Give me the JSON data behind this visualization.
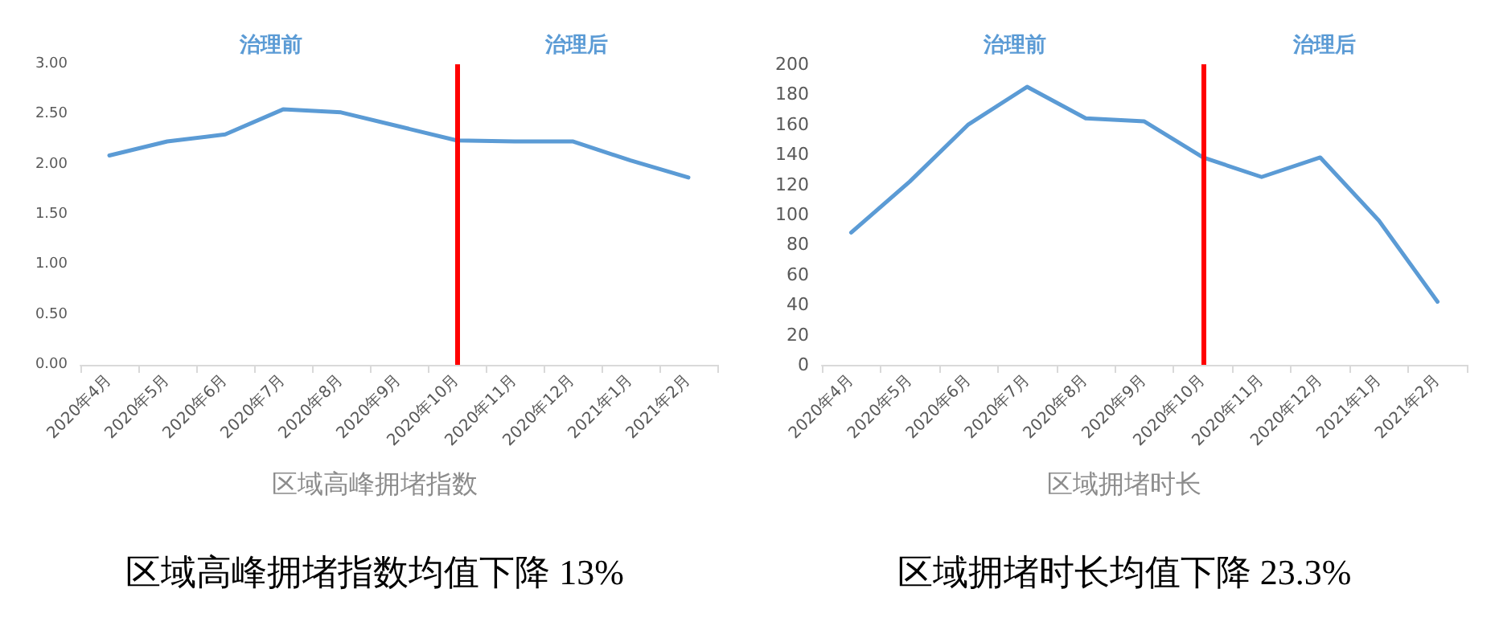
{
  "chart_data": [
    {
      "type": "line",
      "xlabel": "区域高峰拥堵指数",
      "annotations": [
        "治理前",
        "治理后",
        "区域高峰拥堵指数均值下降 13%"
      ],
      "categories": [
        "2020年4月",
        "2020年5月",
        "2020年6月",
        "2020年7月",
        "2020年8月",
        "2020年9月",
        "2020年10月",
        "2020年11月",
        "2020年12月",
        "2021年1月",
        "2021年2月"
      ],
      "series": [
        {
          "color": "#5b9bd5",
          "values": [
            2.09,
            2.23,
            2.3,
            2.55,
            2.52,
            2.38,
            2.24,
            2.23,
            2.23,
            2.04,
            1.87
          ]
        }
      ],
      "ylim": [
        0,
        3
      ],
      "yticks": [
        {
          "value": 0,
          "label": "0.00"
        },
        {
          "value": 0.5,
          "label": "0.50"
        },
        {
          "value": 1,
          "label": "1.00"
        },
        {
          "value": 1.5,
          "label": "1.50"
        },
        {
          "value": 2,
          "label": "2.00"
        },
        {
          "value": 2.5,
          "label": "2.50"
        },
        {
          "value": 3,
          "label": "3.00"
        }
      ],
      "ref_lines": [
        {
          "axis": "x",
          "value": "2020年10月",
          "color": "#ff0000",
          "line_style": "solid"
        }
      ],
      "grid": false,
      "marker": "none",
      "line_style": "solid"
    },
    {
      "type": "line",
      "xlabel": "区域拥堵时长",
      "annotations": [
        "治理前",
        "治理后",
        "区域拥堵时长均值下降 23.3%"
      ],
      "categories": [
        "2020年4月",
        "2020年5月",
        "2020年6月",
        "2020年7月",
        "2020年8月",
        "2020年9月",
        "2020年10月",
        "2020年11月",
        "2020年12月",
        "2021年1月",
        "2021年2月"
      ],
      "series": [
        {
          "color": "#5b9bd5",
          "values": [
            88,
            122,
            160,
            185,
            164,
            162,
            138,
            125,
            138,
            96,
            42
          ]
        }
      ],
      "ylim": [
        0,
        200
      ],
      "yticks": [
        0,
        20,
        40,
        60,
        80,
        100,
        120,
        140,
        160,
        180,
        200
      ],
      "ref_lines": [
        {
          "axis": "x",
          "value": "2020年10月",
          "color": "#ff0000",
          "line_style": "solid"
        }
      ],
      "grid": false,
      "marker": "none",
      "line_style": "solid"
    }
  ]
}
